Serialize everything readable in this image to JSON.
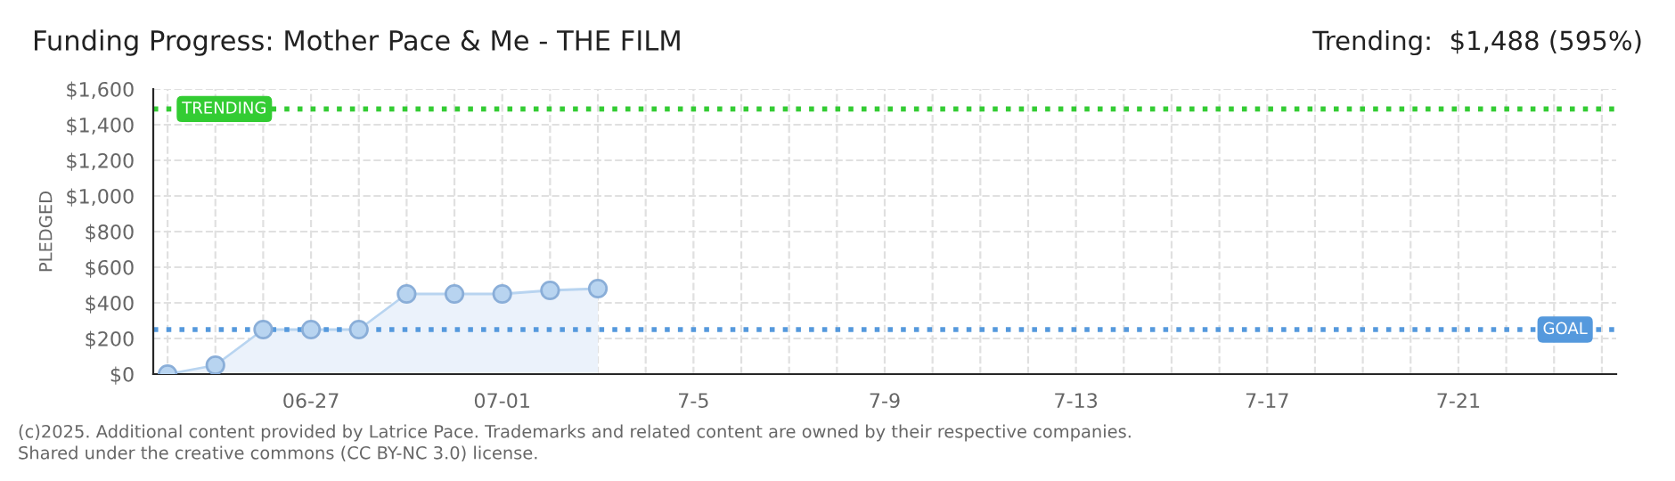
{
  "chart_data": {
    "type": "area",
    "title": "Funding Progress: Mother Pace & Me - THE FILM",
    "ylabel": "PLEDGED",
    "categories": [
      null,
      null,
      null,
      "06-27",
      null,
      null,
      null,
      "07-01",
      null,
      null,
      null,
      "7-5",
      null,
      null,
      null,
      "7-9",
      null,
      null,
      null,
      "7-13",
      null,
      null,
      null,
      "7-17",
      null,
      null,
      null,
      "7-21",
      null,
      null,
      null
    ],
    "series": [
      {
        "color": "#b8d4f0",
        "values": [
          0,
          50,
          250,
          250,
          250,
          450,
          450,
          450,
          470,
          480,
          null,
          null,
          null,
          null,
          null,
          null,
          null,
          null,
          null,
          null,
          null,
          null,
          null,
          null,
          null,
          null,
          null,
          null,
          null,
          null,
          null
        ]
      }
    ],
    "marker": "circle",
    "ylim": [
      0,
      1600
    ],
    "yticks": [
      {
        "value": 0,
        "label": "$0"
      },
      {
        "value": 200,
        "label": "$200"
      },
      {
        "value": 400,
        "label": "$400"
      },
      {
        "value": 600,
        "label": "$600"
      },
      {
        "value": 800,
        "label": "$800"
      },
      {
        "value": 1000,
        "label": "$1,000"
      },
      {
        "value": 1200,
        "label": "$1,200"
      },
      {
        "value": 1400,
        "label": "$1,400"
      },
      {
        "value": 1600,
        "label": "$1,600"
      }
    ],
    "grid": true,
    "ref_lines": [
      {
        "axis": "y",
        "value": 1488,
        "label": "TRENDING",
        "color": "#33cc33",
        "line_style": "dotted"
      },
      {
        "axis": "y",
        "value": 250,
        "label": "GOAL",
        "color": "#5599dd",
        "line_style": "dotted"
      }
    ],
    "annotations": [
      "Trending:  $1,488 (595%)",
      "(c)2025. Additional content provided by Latrice Pace. Trademarks and related content are owned by their respective companies.",
      "Shared under the creative commons (CC BY-NC 3.0) license."
    ]
  }
}
